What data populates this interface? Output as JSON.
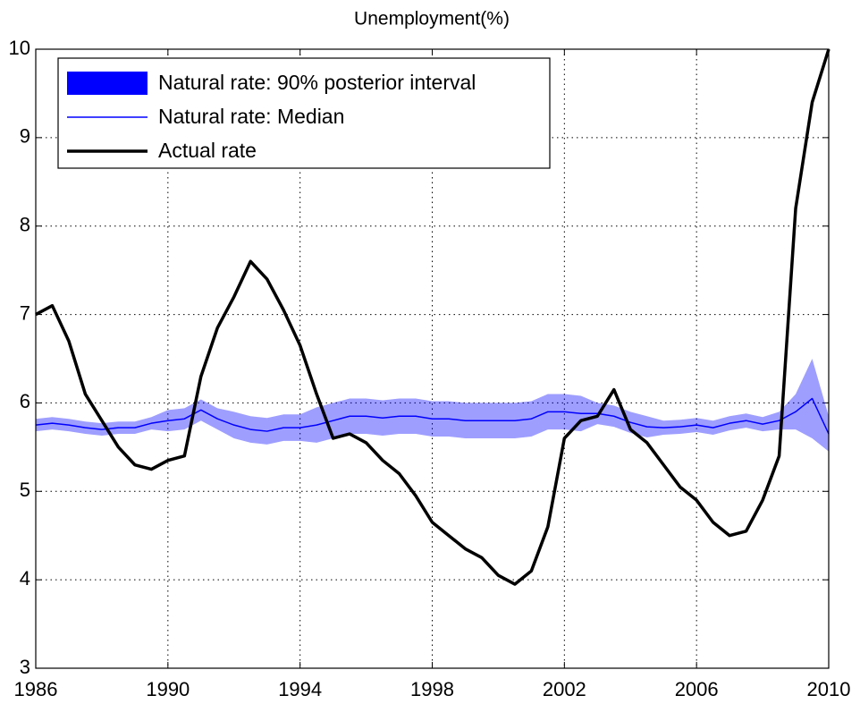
{
  "chart_data": {
    "type": "line",
    "title": "Unemployment(%)",
    "x": [
      1986,
      1986.5,
      1987,
      1987.5,
      1988,
      1988.5,
      1989,
      1989.5,
      1990,
      1990.5,
      1991,
      1991.5,
      1992,
      1992.5,
      1993,
      1993.5,
      1994,
      1994.5,
      1995,
      1995.5,
      1996,
      1996.5,
      1997,
      1997.5,
      1998,
      1998.5,
      1999,
      1999.5,
      2000,
      2000.5,
      2001,
      2001.5,
      2002,
      2002.5,
      2003,
      2003.5,
      2004,
      2004.5,
      2005,
      2005.5,
      2006,
      2006.5,
      2007,
      2007.5,
      2008,
      2008.5,
      2009,
      2009.5,
      2010
    ],
    "series": [
      {
        "name": "Natural rate: 90% posterior interval",
        "kind": "band",
        "color": "#0000ff",
        "opacity": 0.38,
        "upper": [
          5.82,
          5.84,
          5.82,
          5.79,
          5.77,
          5.79,
          5.79,
          5.84,
          5.92,
          5.94,
          6.04,
          5.94,
          5.9,
          5.85,
          5.83,
          5.87,
          5.87,
          5.95,
          6.0,
          6.05,
          6.05,
          6.03,
          6.05,
          6.05,
          6.02,
          6.02,
          6.0,
          6.0,
          6.0,
          6.0,
          6.02,
          6.1,
          6.1,
          6.08,
          6.0,
          5.97,
          5.9,
          5.85,
          5.8,
          5.81,
          5.83,
          5.8,
          5.85,
          5.88,
          5.84,
          5.9,
          6.1,
          6.5,
          5.85
        ],
        "lower": [
          5.68,
          5.7,
          5.68,
          5.65,
          5.63,
          5.65,
          5.65,
          5.7,
          5.68,
          5.7,
          5.8,
          5.7,
          5.6,
          5.55,
          5.53,
          5.57,
          5.57,
          5.55,
          5.6,
          5.65,
          5.65,
          5.63,
          5.65,
          5.65,
          5.62,
          5.62,
          5.6,
          5.6,
          5.6,
          5.6,
          5.62,
          5.7,
          5.7,
          5.68,
          5.76,
          5.73,
          5.66,
          5.61,
          5.64,
          5.65,
          5.67,
          5.64,
          5.69,
          5.72,
          5.68,
          5.7,
          5.7,
          5.6,
          5.45
        ]
      },
      {
        "name": "Natural rate: Median",
        "kind": "line",
        "color": "#0000ff",
        "width": 1.5,
        "values": [
          5.75,
          5.77,
          5.75,
          5.72,
          5.7,
          5.72,
          5.72,
          5.77,
          5.8,
          5.82,
          5.92,
          5.82,
          5.75,
          5.7,
          5.68,
          5.72,
          5.72,
          5.75,
          5.8,
          5.85,
          5.85,
          5.83,
          5.85,
          5.85,
          5.82,
          5.82,
          5.8,
          5.8,
          5.8,
          5.8,
          5.82,
          5.9,
          5.9,
          5.88,
          5.88,
          5.85,
          5.78,
          5.73,
          5.72,
          5.73,
          5.75,
          5.72,
          5.77,
          5.8,
          5.76,
          5.8,
          5.9,
          6.05,
          5.65
        ]
      },
      {
        "name": "Actual rate",
        "kind": "line",
        "color": "#000000",
        "width": 3.5,
        "values": [
          7.0,
          7.1,
          6.7,
          6.1,
          5.8,
          5.5,
          5.3,
          5.25,
          5.35,
          5.4,
          6.3,
          6.85,
          7.2,
          7.6,
          7.4,
          7.05,
          6.65,
          6.1,
          5.6,
          5.65,
          5.55,
          5.35,
          5.2,
          4.95,
          4.65,
          4.5,
          4.35,
          4.25,
          4.05,
          3.95,
          4.1,
          4.6,
          5.6,
          5.8,
          5.85,
          6.15,
          5.7,
          5.55,
          5.3,
          5.05,
          4.9,
          4.65,
          4.5,
          4.55,
          4.9,
          5.4,
          8.2,
          9.4,
          10.0
        ]
      }
    ],
    "xlim": [
      1986,
      2010
    ],
    "xticks": [
      1986,
      1990,
      1994,
      1998,
      2002,
      2006,
      2010
    ],
    "ylim": [
      3,
      10
    ],
    "yticks": [
      3,
      4,
      5,
      6,
      7,
      8,
      9,
      10
    ],
    "grid": true,
    "legend": "upper left"
  }
}
